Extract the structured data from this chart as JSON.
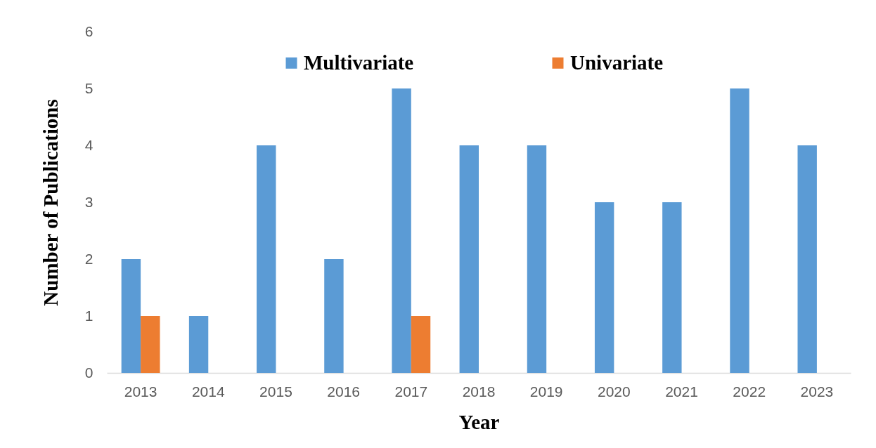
{
  "chart_data": {
    "type": "bar",
    "xlabel": "Year",
    "ylabel": "Number of Publications",
    "categories": [
      "2013",
      "2014",
      "2015",
      "2016",
      "2017",
      "2018",
      "2019",
      "2020",
      "2021",
      "2022",
      "2023"
    ],
    "series": [
      {
        "name": "Multivariate",
        "color": "#5b9bd5",
        "values": [
          2,
          1,
          4,
          2,
          5,
          4,
          4,
          3,
          3,
          5,
          4
        ]
      },
      {
        "name": "Univariate",
        "color": "#ed7d31",
        "values": [
          1,
          null,
          null,
          null,
          1,
          null,
          null,
          null,
          null,
          null,
          null
        ]
      }
    ],
    "ylim": [
      0,
      6
    ],
    "yticks": [
      0,
      1,
      2,
      3,
      4,
      5,
      6
    ],
    "legend": "top"
  }
}
